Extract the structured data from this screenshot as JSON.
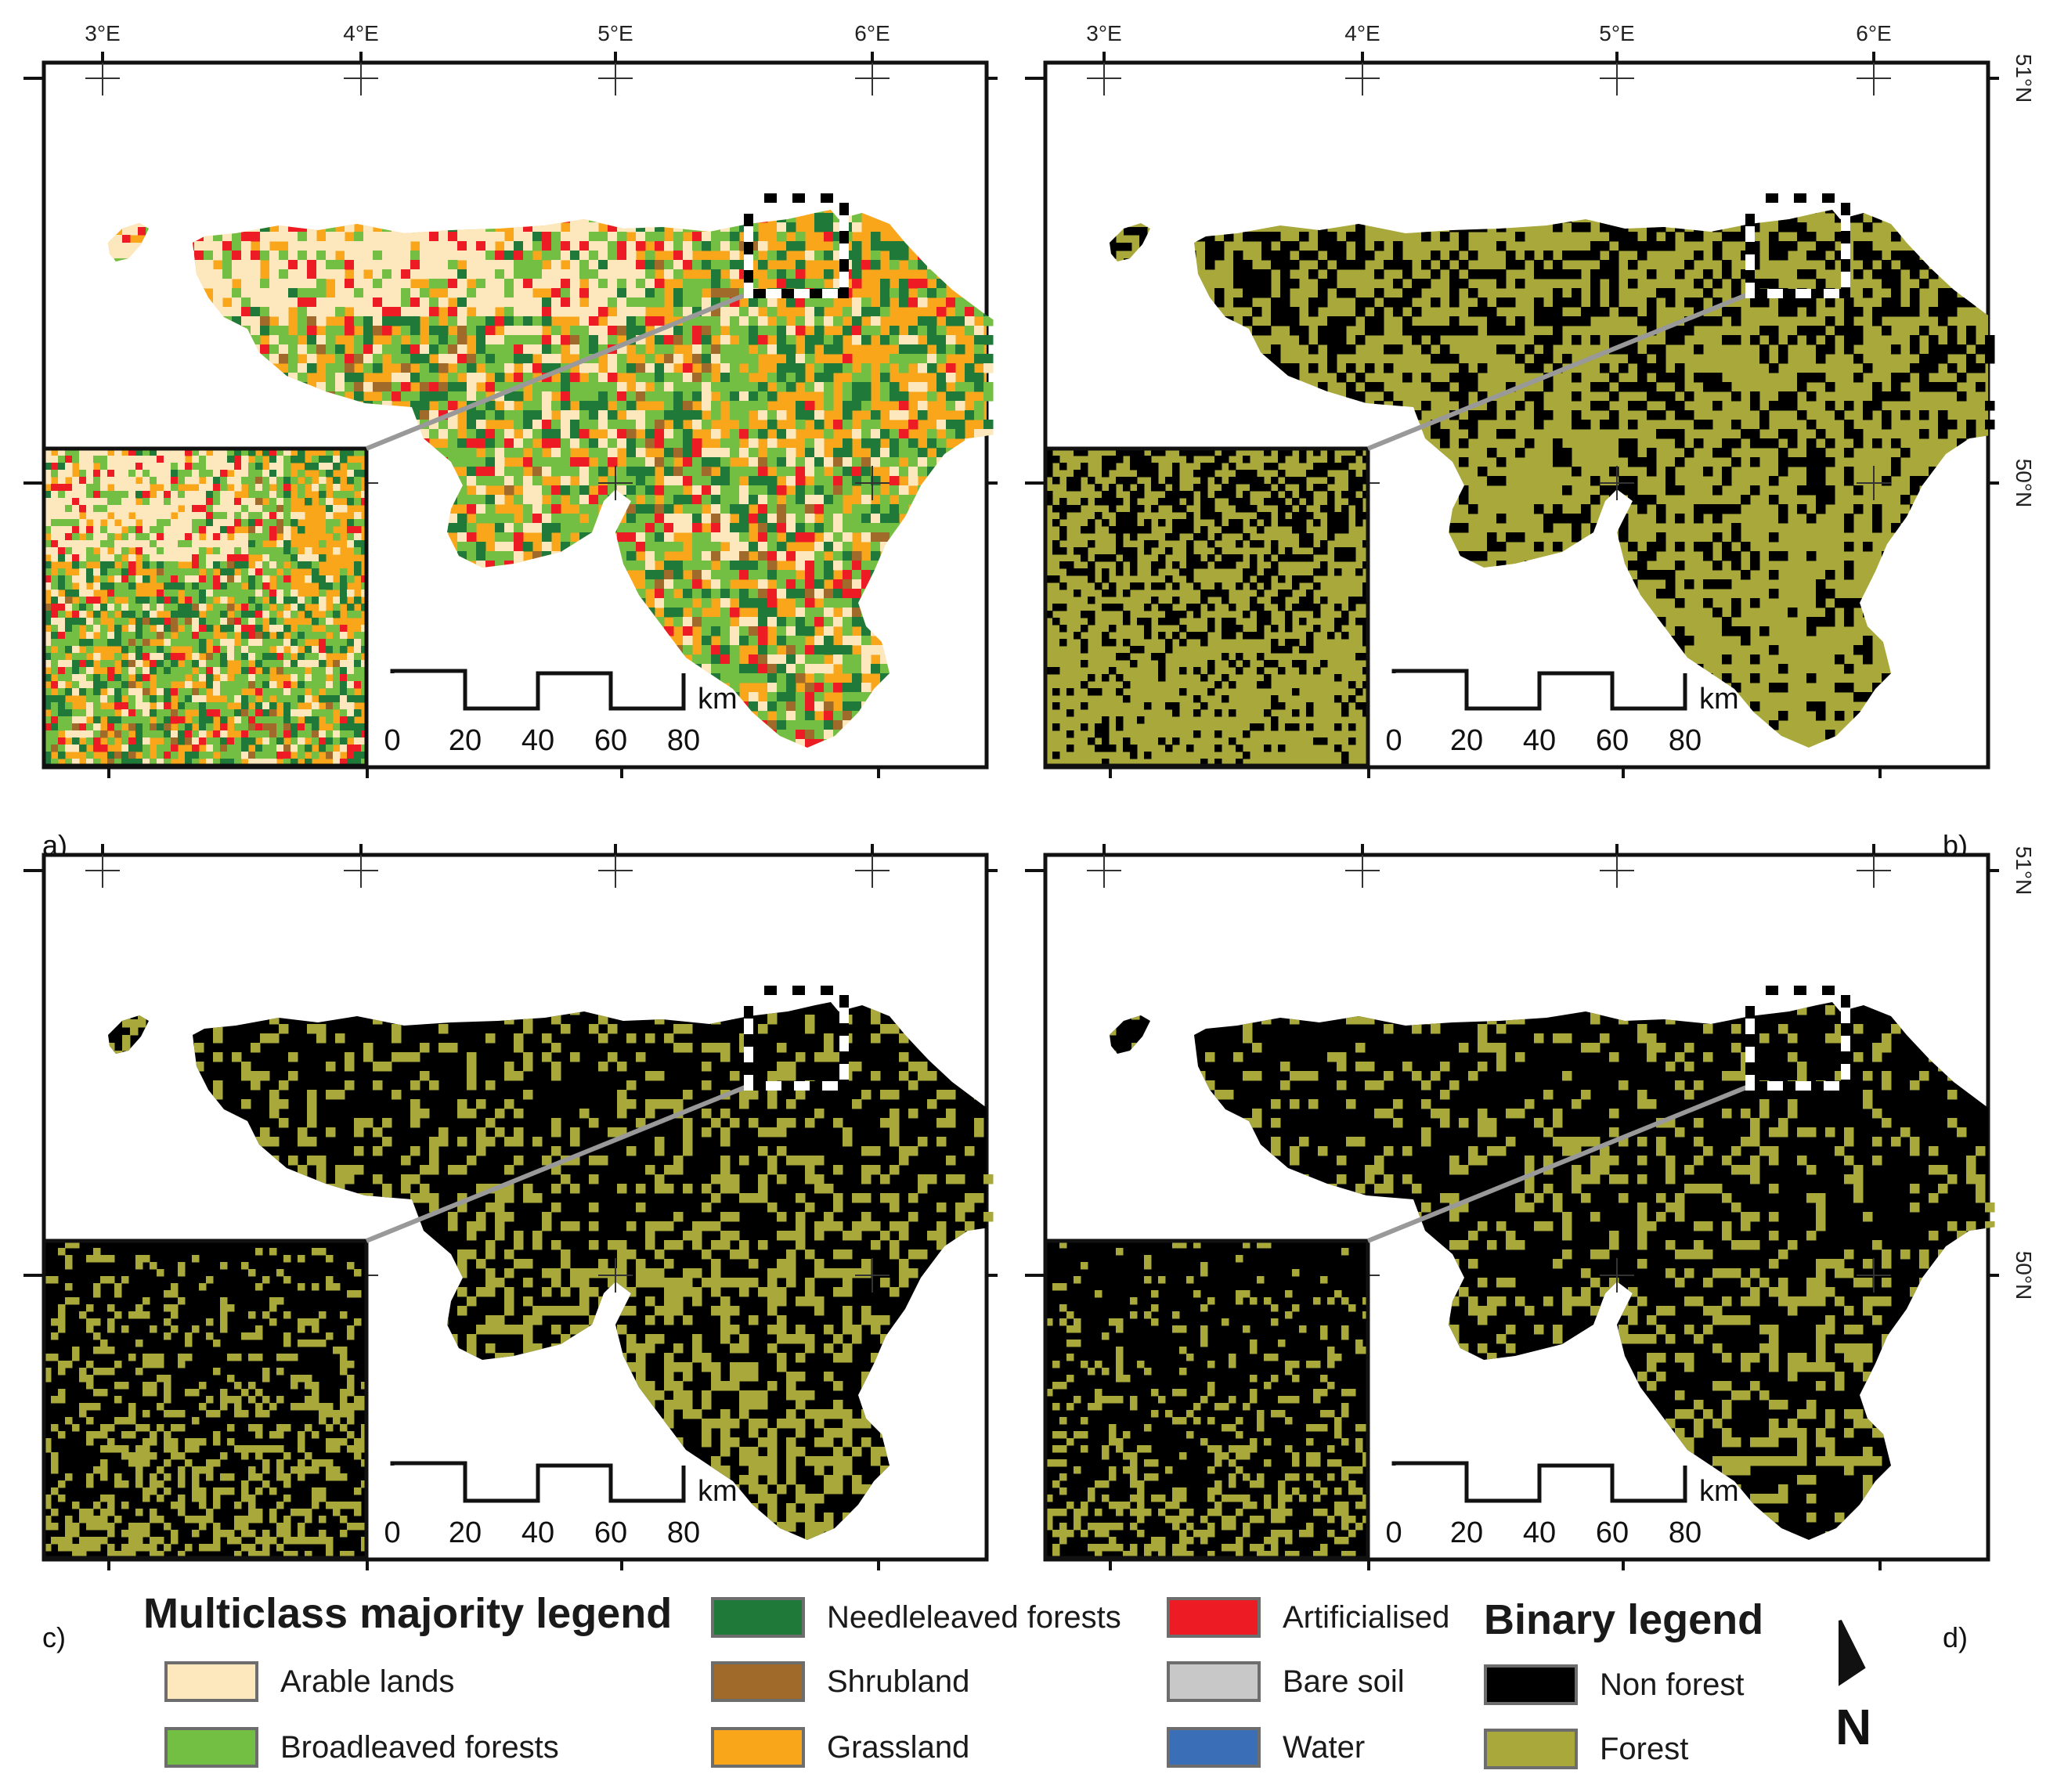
{
  "panels": [
    {
      "letter": "a)",
      "style": "multiclass",
      "lon_ticks": [
        "3°E",
        "4°E",
        "5°E",
        "6°E"
      ],
      "lat_ticks": []
    },
    {
      "letter": "b)",
      "style": "binary-mostly-forest",
      "lon_ticks": [
        "3°E",
        "4°E",
        "5°E",
        "6°E"
      ],
      "lat_ticks": [
        "51°N",
        "50°N"
      ]
    },
    {
      "letter": "c)",
      "style": "binary-mostly-nonforest",
      "lon_ticks": [],
      "lat_ticks": []
    },
    {
      "letter": "d)",
      "style": "binary-sparse-forest",
      "lon_ticks": [],
      "lat_ticks": [
        "51°N",
        "50°N"
      ]
    }
  ],
  "scalebar": {
    "labels": [
      "0",
      "20",
      "40",
      "60",
      "80"
    ],
    "unit": "km"
  },
  "multiclass_legend": {
    "title": "Multiclass majority legend",
    "items": [
      {
        "label": "Arable lands",
        "color": "#fde8bd"
      },
      {
        "label": "Broadleaved forests",
        "color": "#72bf44"
      },
      {
        "label": "Needleleaved forests",
        "color": "#1f7a3a"
      },
      {
        "label": "Shrubland",
        "color": "#a06b2a"
      },
      {
        "label": "Grassland",
        "color": "#f9a61a"
      },
      {
        "label": "Artificialised",
        "color": "#ed1c24"
      },
      {
        "label": "Bare soil",
        "color": "#c8c8c8"
      },
      {
        "label": "Water",
        "color": "#3a6fb7"
      }
    ]
  },
  "binary_legend": {
    "title": "Binary legend",
    "items": [
      {
        "label": "Non forest",
        "color": "#000000"
      },
      {
        "label": "Forest",
        "color": "#a8a83b"
      }
    ]
  },
  "north_arrow": {
    "letter": "N",
    "icon": "north-arrow-icon"
  }
}
